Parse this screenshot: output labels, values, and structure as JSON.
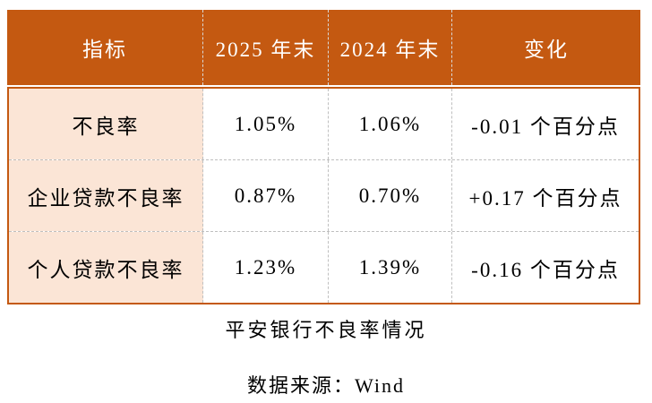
{
  "table": {
    "headers": [
      "指标",
      "2025 年末",
      "2024 年末",
      "变化"
    ],
    "rows": [
      {
        "indicator": "不良率",
        "v2025": "1.05%",
        "v2024": "1.06%",
        "change": "-0.01 个百分点"
      },
      {
        "indicator": "企业贷款不良率",
        "v2025": "0.87%",
        "v2024": "0.70%",
        "change": "+0.17 个百分点"
      },
      {
        "indicator": "个人贷款不良率",
        "v2025": "1.23%",
        "v2024": "1.39%",
        "change": "-0.16 个百分点"
      }
    ]
  },
  "caption": "平安银行不良率情况",
  "source": "数据来源：Wind",
  "colors": {
    "header_bg": "#C45911",
    "header_text": "#FFFFFF",
    "label_bg": "#FBE5D6",
    "border": "#C45911",
    "body_divider": "#BFBFBF",
    "body_text": "#000000"
  }
}
